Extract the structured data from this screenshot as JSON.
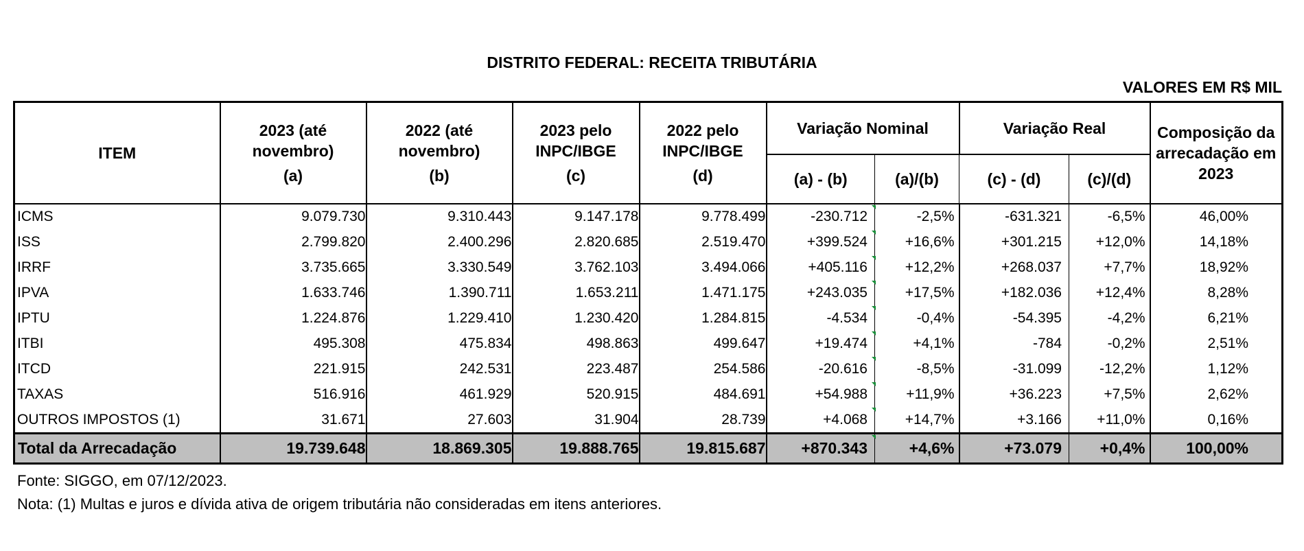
{
  "title": "DISTRITO FEDERAL: RECEITA TRIBUTÁRIA",
  "units": "VALORES EM R$ MIL",
  "headers": {
    "item": "ITEM",
    "col_a_title": "2023 (até novembro)",
    "col_a_letter": "(a)",
    "col_b_title": "2022 (até novembro)",
    "col_b_letter": "(b)",
    "col_c_title": "2023 pelo INPC/IBGE",
    "col_c_letter": "(c)",
    "col_d_title": "2022 pelo INPC/IBGE",
    "col_d_letter": "(d)",
    "var_nominal": "Variação Nominal",
    "var_nominal_diff": "(a) - (b)",
    "var_nominal_ratio": "(a)/(b)",
    "var_real": "Variação Real",
    "var_real_diff": "(c) - (d)",
    "var_real_ratio": "(c)/(d)",
    "composition": "Composição da arrecadação em 2023"
  },
  "rows": [
    {
      "item": "ICMS",
      "a": "9.079.730",
      "b": "9.310.443",
      "c": "9.147.178",
      "d": "9.778.499",
      "nom_diff": "-230.712",
      "nom_pct": "-2,5%",
      "real_diff": "-631.321",
      "real_pct": "-6,5%",
      "comp": "46,00%"
    },
    {
      "item": "ISS",
      "a": "2.799.820",
      "b": "2.400.296",
      "c": "2.820.685",
      "d": "2.519.470",
      "nom_diff": "+399.524",
      "nom_pct": "+16,6%",
      "real_diff": "+301.215",
      "real_pct": "+12,0%",
      "comp": "14,18%"
    },
    {
      "item": "IRRF",
      "a": "3.735.665",
      "b": "3.330.549",
      "c": "3.762.103",
      "d": "3.494.066",
      "nom_diff": "+405.116",
      "nom_pct": "+12,2%",
      "real_diff": "+268.037",
      "real_pct": "+7,7%",
      "comp": "18,92%"
    },
    {
      "item": "IPVA",
      "a": "1.633.746",
      "b": "1.390.711",
      "c": "1.653.211",
      "d": "1.471.175",
      "nom_diff": "+243.035",
      "nom_pct": "+17,5%",
      "real_diff": "+182.036",
      "real_pct": "+12,4%",
      "comp": "8,28%"
    },
    {
      "item": "IPTU",
      "a": "1.224.876",
      "b": "1.229.410",
      "c": "1.230.420",
      "d": "1.284.815",
      "nom_diff": "-4.534",
      "nom_pct": "-0,4%",
      "real_diff": "-54.395",
      "real_pct": "-4,2%",
      "comp": "6,21%"
    },
    {
      "item": "ITBI",
      "a": "495.308",
      "b": "475.834",
      "c": "498.863",
      "d": "499.647",
      "nom_diff": "+19.474",
      "nom_pct": "+4,1%",
      "real_diff": "-784",
      "real_pct": "-0,2%",
      "comp": "2,51%"
    },
    {
      "item": "ITCD",
      "a": "221.915",
      "b": "242.531",
      "c": "223.487",
      "d": "254.586",
      "nom_diff": "-20.616",
      "nom_pct": "-8,5%",
      "real_diff": "-31.099",
      "real_pct": "-12,2%",
      "comp": "1,12%"
    },
    {
      "item": "TAXAS",
      "a": "516.916",
      "b": "461.929",
      "c": "520.915",
      "d": "484.691",
      "nom_diff": "+54.988",
      "nom_pct": "+11,9%",
      "real_diff": "+36.223",
      "real_pct": "+7,5%",
      "comp": "2,62%"
    },
    {
      "item": "OUTROS IMPOSTOS (1)",
      "a": "31.671",
      "b": "27.603",
      "c": "31.904",
      "d": "28.739",
      "nom_diff": "+4.068",
      "nom_pct": "+14,7%",
      "real_diff": "+3.166",
      "real_pct": "+11,0%",
      "comp": "0,16%"
    }
  ],
  "total": {
    "item": "Total da Arrecadação",
    "a": "19.739.648",
    "b": "18.869.305",
    "c": "19.888.765",
    "d": "19.815.687",
    "nom_diff": "+870.343",
    "nom_pct": "+4,6%",
    "real_diff": "+73.079",
    "real_pct": "+0,4%",
    "comp": "100,00%"
  },
  "source": "Fonte: SIGGO, em 07/12/2023.",
  "note": "Nota: (1) Multas e juros e dívida ativa de origem tributária não consideradas em itens anteriores.",
  "colors": {
    "total_row_bg": "#bfbfbf",
    "cell_marker": "#1a8f3a"
  }
}
